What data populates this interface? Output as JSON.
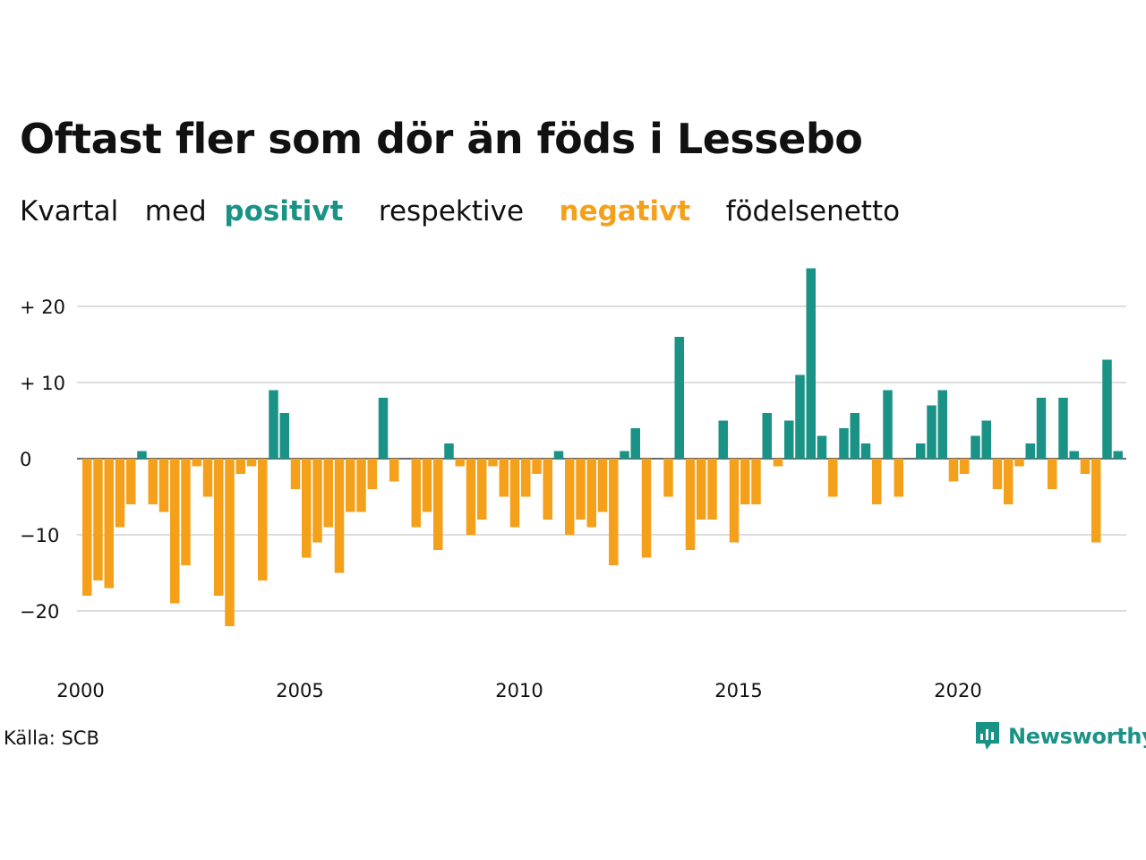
{
  "header": {
    "title": "Oftast fler som dör än föds i Lessebo",
    "subtitle": {
      "word1": "Kvartal",
      "word2": "med",
      "positive": "positivt",
      "middle": "respektive",
      "negative": "negativt",
      "end": "födelsenetto"
    }
  },
  "footer": {
    "source": "Källa: SCB",
    "brand": "Newsworthy"
  },
  "colors": {
    "positive": "#1a9386",
    "negative": "#f5a01a",
    "grid": "#dddddd"
  },
  "chart_data": {
    "type": "bar",
    "x_tick_labels": [
      "2000",
      "2005",
      "2010",
      "2015",
      "2020"
    ],
    "y_tick_labels": [
      "+ 20",
      "+ 10",
      "0",
      "−10",
      "−20"
    ],
    "y_ticks": [
      20,
      10,
      0,
      -10,
      -20
    ],
    "ylim": [
      -25,
      25
    ],
    "start": "2000 Q1",
    "values": [
      -18,
      -16,
      -17,
      -9,
      -6,
      1,
      -6,
      -7,
      -19,
      -14,
      -1,
      -5,
      -18,
      -22,
      -2,
      -1,
      -16,
      9,
      6,
      -4,
      -13,
      -11,
      -9,
      -15,
      -7,
      -7,
      -4,
      8,
      -3,
      0,
      -9,
      -7,
      -12,
      2,
      -1,
      -10,
      -8,
      -1,
      -5,
      -9,
      -5,
      -2,
      -8,
      1,
      -10,
      -8,
      -9,
      -7,
      -14,
      1,
      4,
      -13,
      0,
      -5,
      16,
      -12,
      -8,
      -8,
      5,
      -11,
      -6,
      -6,
      6,
      -1,
      5,
      11,
      25,
      3,
      -5,
      4,
      6,
      2,
      -6,
      9,
      -5,
      0,
      2,
      7,
      9,
      -3,
      -2,
      3,
      5,
      -4,
      -6,
      -1,
      2,
      8,
      -4,
      8,
      1,
      -2,
      -11,
      13,
      1
    ]
  }
}
